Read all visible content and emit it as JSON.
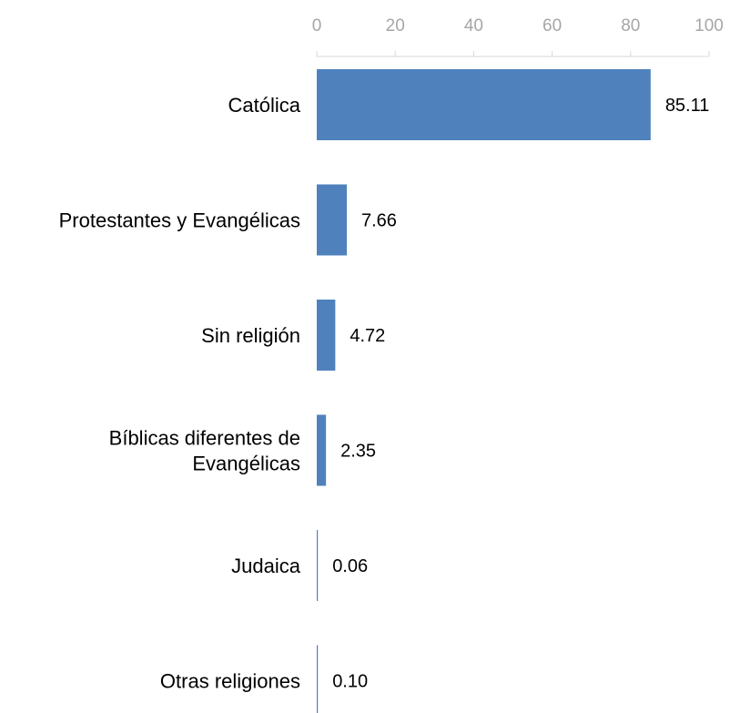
{
  "chart_data": {
    "type": "bar",
    "orientation": "horizontal",
    "categories": [
      "Católica",
      "Protestantes y Evangélicas",
      "Sin religión",
      [
        "Bíblicas diferentes de",
        "Evangélicas"
      ],
      "Judaica",
      "Otras religiones"
    ],
    "values": [
      85.11,
      7.66,
      4.72,
      2.35,
      0.06,
      0.1
    ],
    "value_labels": [
      "85.11",
      "7.66",
      "4.72",
      "2.35",
      "0.06",
      "0.10"
    ],
    "xlim": [
      0,
      100
    ],
    "xticks": [
      0,
      20,
      40,
      60,
      80,
      100
    ],
    "x_axis_position": "top",
    "grid": false,
    "legend": "none",
    "bar_color": "#4f81bd",
    "axis_color": "#d9d9d9",
    "tick_label_color": "#a6a6a6",
    "title": "",
    "xlabel": "",
    "ylabel": ""
  }
}
